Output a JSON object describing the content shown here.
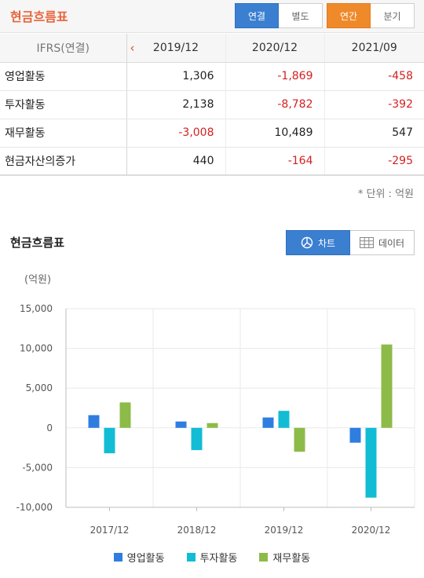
{
  "header": {
    "title": "현금흐름표",
    "seg1": [
      "연결",
      "별도"
    ],
    "seg2": [
      "연간",
      "분기"
    ]
  },
  "table": {
    "corner": "IFRS(연결)",
    "prev_arrow": "‹",
    "next_arrow": "›",
    "columns": [
      "2019/12",
      "2020/12",
      "2021/09"
    ],
    "rows": [
      {
        "label": "영업활동",
        "values": [
          "1,306",
          "-1,869",
          "-458"
        ]
      },
      {
        "label": "투자활동",
        "values": [
          "2,138",
          "-8,782",
          "-392"
        ]
      },
      {
        "label": "재무활동",
        "values": [
          "-3,008",
          "10,489",
          "547"
        ]
      },
      {
        "label": "현금자산의증가",
        "values": [
          "440",
          "-164",
          "-295"
        ]
      }
    ]
  },
  "unit_note": "* 단위 : 억원",
  "chart_section": {
    "title": "현금흐름표",
    "btn_chart": "차트",
    "btn_data": "데이터",
    "ylabel": "(억원)"
  },
  "colors": {
    "accent_orange": "#e8643a",
    "blue_btn": "#3b7fd1",
    "orange_btn": "#ef8a2a",
    "negative": "#d42121"
  },
  "chart_data": {
    "type": "bar",
    "categories": [
      "2017/12",
      "2018/12",
      "2019/12",
      "2020/12"
    ],
    "series": [
      {
        "name": "영업활동",
        "color": "#2f7de1",
        "values": [
          1600,
          800,
          1306,
          -1869
        ]
      },
      {
        "name": "투자활동",
        "color": "#12bcd4",
        "values": [
          -3200,
          -2800,
          2138,
          -8782
        ]
      },
      {
        "name": "재무활동",
        "color": "#8dbb48",
        "values": [
          3200,
          600,
          -3008,
          10489
        ]
      }
    ],
    "ylim": [
      -10000,
      15000
    ],
    "yticks": [
      "15,000",
      "10,000",
      "5,000",
      "0",
      "-5,000",
      "-10,000"
    ],
    "ytick_values": [
      15000,
      10000,
      5000,
      0,
      -5000,
      -10000
    ],
    "grid": true,
    "legend": "bottom-center"
  }
}
